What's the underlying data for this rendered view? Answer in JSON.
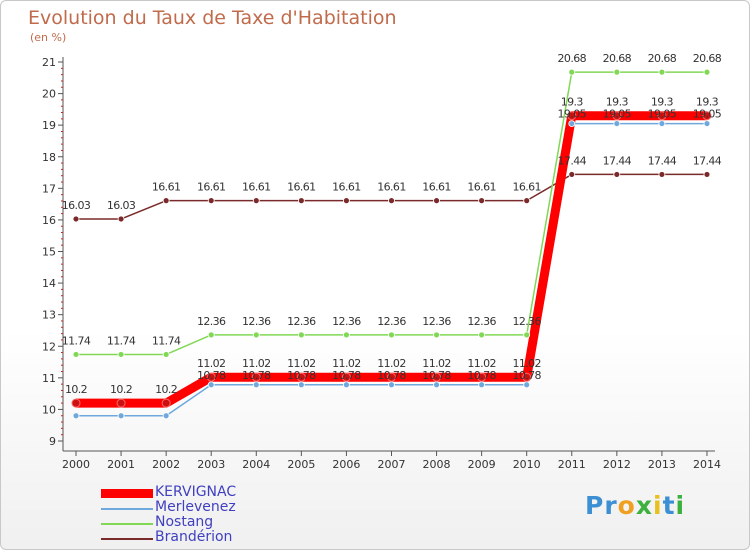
{
  "header": {
    "title": "Evolution du Taux de Taxe d'Habitation",
    "subtitle": "(en %)"
  },
  "logo": {
    "text_a": "Pr",
    "text_o": "o",
    "text_x": "x",
    "text_i": "i",
    "text_t": "t",
    "text_i2": "i"
  },
  "chart_data": {
    "type": "line",
    "x": [
      "2000",
      "2001",
      "2002",
      "2003",
      "2004",
      "2005",
      "2006",
      "2007",
      "2008",
      "2009",
      "2010",
      "2011",
      "2012",
      "2013",
      "2014"
    ],
    "ylim": [
      9,
      21
    ],
    "yticks": [
      "9",
      "10",
      "11",
      "12",
      "13",
      "14",
      "15",
      "16",
      "17",
      "18",
      "19",
      "20",
      "21"
    ],
    "grid": false,
    "legend_position": "bottom-left",
    "series": [
      {
        "name": "KERVIGNAC",
        "color": "#ff0000",
        "values": [
          10.2,
          10.2,
          10.2,
          11.02,
          11.02,
          11.02,
          11.02,
          11.02,
          11.02,
          11.02,
          11.02,
          19.3,
          19.3,
          19.3,
          19.3
        ],
        "labels": [
          "10.2",
          "10.2",
          "10.2",
          "11.02",
          "11.02",
          "11.02",
          "11.02",
          "11.02",
          "11.02",
          "11.02",
          "11.02",
          "19.3",
          "19.3",
          "19.3",
          "19.3"
        ]
      },
      {
        "name": "Merlevenez",
        "color": "#6fa8dc",
        "values": [
          9.8,
          9.8,
          9.8,
          10.78,
          10.78,
          10.78,
          10.78,
          10.78,
          10.78,
          10.78,
          10.78,
          19.05,
          19.05,
          19.05,
          19.05
        ],
        "labels": [
          "",
          "",
          "",
          "10.78",
          "10.78",
          "10.78",
          "10.78",
          "10.78",
          "10.78",
          "10.78",
          "10.78",
          "19.05",
          "19.05",
          "19.05",
          "19.05"
        ]
      },
      {
        "name": "Nostang",
        "color": "#80d855",
        "values": [
          11.74,
          11.74,
          11.74,
          12.36,
          12.36,
          12.36,
          12.36,
          12.36,
          12.36,
          12.36,
          12.36,
          20.68,
          20.68,
          20.68,
          20.68
        ],
        "labels": [
          "11.74",
          "11.74",
          "11.74",
          "12.36",
          "12.36",
          "12.36",
          "12.36",
          "12.36",
          "12.36",
          "12.36",
          "12.36",
          "20.68",
          "20.68",
          "20.68",
          "20.68"
        ]
      },
      {
        "name": "Brandérion",
        "color": "#7a2a2a",
        "values": [
          16.03,
          16.03,
          16.61,
          16.61,
          16.61,
          16.61,
          16.61,
          16.61,
          16.61,
          16.61,
          16.61,
          17.44,
          17.44,
          17.44,
          17.44
        ],
        "labels": [
          "16.03",
          "16.03",
          "16.61",
          "16.61",
          "16.61",
          "16.61",
          "16.61",
          "16.61",
          "16.61",
          "16.61",
          "16.61",
          "17.44",
          "17.44",
          "17.44",
          "17.44"
        ]
      }
    ]
  }
}
